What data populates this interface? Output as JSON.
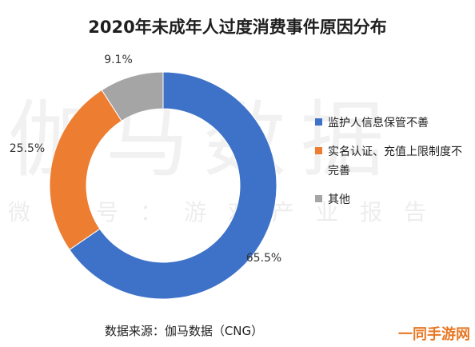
{
  "title": "2020年未成年人过度消费事件原因分布",
  "watermark": {
    "big": "伽马数据",
    "small": "微信号：游戏产业报告"
  },
  "source": "数据来源：伽马数据（CNG）",
  "brand": "一同手游网",
  "chart_data": {
    "type": "pie",
    "donut": true,
    "title": "2020年未成年人过度消费事件原因分布",
    "slices": [
      {
        "name": "监护人信息保管不善",
        "value": 65.5,
        "label": "65.5%",
        "color": "#3e72c8"
      },
      {
        "name": "实名认证、充值上限制度不完善",
        "value": 25.5,
        "label": "25.5%",
        "color": "#ed7d31"
      },
      {
        "name": "其他",
        "value": 9.1,
        "label": "9.1%",
        "color": "#a5a5a5"
      }
    ],
    "legend_position": "right"
  },
  "legend": {
    "items": [
      {
        "label": "监护人信息保管不善",
        "color": "#3e72c8"
      },
      {
        "label": "实名认证、充值上限制度不完善",
        "color": "#ed7d31"
      },
      {
        "label": "其他",
        "color": "#a5a5a5"
      }
    ]
  }
}
